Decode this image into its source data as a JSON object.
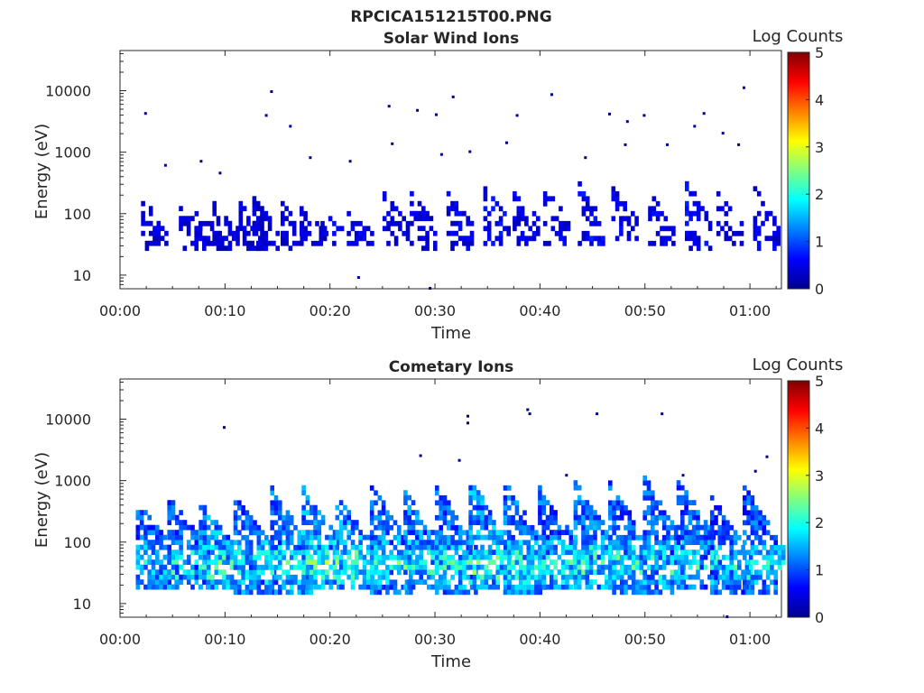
{
  "figure": {
    "title": "RPCICA151215T00.PNG"
  },
  "chart_data": [
    {
      "type": "heatmap",
      "title": "Solar Wind Ions",
      "xlabel": "Time",
      "ylabel": "Energy (eV)",
      "x_ticks": [
        "00:00",
        "00:10",
        "00:20",
        "00:30",
        "00:40",
        "00:50",
        "01:00"
      ],
      "x_range_minutes": [
        0,
        63
      ],
      "y_ticks": [
        "10",
        "100",
        "1000",
        "10000"
      ],
      "y_scale": "log",
      "y_range": [
        6,
        45000
      ],
      "colorbar": {
        "label": "Log Counts",
        "range": [
          0,
          5
        ],
        "ticks": [
          "0",
          "1",
          "2",
          "3",
          "4",
          "5"
        ]
      },
      "bursts": [
        {
          "t": 3.2,
          "e_lo": 25,
          "e_hi": 170,
          "amp": 0.6
        },
        {
          "t": 6.8,
          "e_lo": 25,
          "e_hi": 120,
          "amp": 0.6
        },
        {
          "t": 8.3,
          "e_lo": 30,
          "e_hi": 100,
          "amp": 0.6
        },
        {
          "t": 10.0,
          "e_lo": 25,
          "e_hi": 140,
          "amp": 0.6
        },
        {
          "t": 12.5,
          "e_lo": 25,
          "e_hi": 150,
          "amp": 0.6
        },
        {
          "t": 13.8,
          "e_lo": 25,
          "e_hi": 180,
          "amp": 0.6
        },
        {
          "t": 16.5,
          "e_lo": 25,
          "e_hi": 150,
          "amp": 0.6
        },
        {
          "t": 18.3,
          "e_lo": 30,
          "e_hi": 120,
          "amp": 0.6
        },
        {
          "t": 20.3,
          "e_lo": 30,
          "e_hi": 140,
          "amp": 0.7
        },
        {
          "t": 22.8,
          "e_lo": 30,
          "e_hi": 100,
          "amp": 0.7
        },
        {
          "t": 26.2,
          "e_lo": 30,
          "e_hi": 220,
          "amp": 0.6
        },
        {
          "t": 28.8,
          "e_lo": 25,
          "e_hi": 200,
          "amp": 0.6
        },
        {
          "t": 32.3,
          "e_lo": 25,
          "e_hi": 240,
          "amp": 0.7
        },
        {
          "t": 35.8,
          "e_lo": 30,
          "e_hi": 350,
          "amp": 0.8
        },
        {
          "t": 38.6,
          "e_lo": 30,
          "e_hi": 260,
          "amp": 0.7
        },
        {
          "t": 41.5,
          "e_lo": 30,
          "e_hi": 240,
          "amp": 0.7
        },
        {
          "t": 44.8,
          "e_lo": 30,
          "e_hi": 300,
          "amp": 0.8
        },
        {
          "t": 48.0,
          "e_lo": 30,
          "e_hi": 280,
          "amp": 0.7
        },
        {
          "t": 51.5,
          "e_lo": 30,
          "e_hi": 220,
          "amp": 0.7
        },
        {
          "t": 55.0,
          "e_lo": 25,
          "e_hi": 320,
          "amp": 0.8
        },
        {
          "t": 58.0,
          "e_lo": 30,
          "e_hi": 200,
          "amp": 0.6
        },
        {
          "t": 61.5,
          "e_lo": 25,
          "e_hi": 260,
          "amp": 0.7
        }
      ],
      "outliers": [
        {
          "t": 2.3,
          "e": 4200
        },
        {
          "t": 4.2,
          "e": 600
        },
        {
          "t": 7.6,
          "e": 700
        },
        {
          "t": 9.4,
          "e": 450
        },
        {
          "t": 14.3,
          "e": 9500
        },
        {
          "t": 13.8,
          "e": 3900
        },
        {
          "t": 16.1,
          "e": 2600
        },
        {
          "t": 18.0,
          "e": 800
        },
        {
          "t": 21.8,
          "e": 700
        },
        {
          "t": 25.5,
          "e": 5500
        },
        {
          "t": 25.8,
          "e": 1350
        },
        {
          "t": 28.2,
          "e": 4700
        },
        {
          "t": 30.0,
          "e": 4000
        },
        {
          "t": 31.6,
          "e": 7800
        },
        {
          "t": 30.5,
          "e": 900
        },
        {
          "t": 33.2,
          "e": 1000
        },
        {
          "t": 37.7,
          "e": 3900
        },
        {
          "t": 41.0,
          "e": 8500
        },
        {
          "t": 46.5,
          "e": 4100
        },
        {
          "t": 48.2,
          "e": 3100
        },
        {
          "t": 49.8,
          "e": 3900
        },
        {
          "t": 54.6,
          "e": 2600
        },
        {
          "t": 55.5,
          "e": 4200
        },
        {
          "t": 57.3,
          "e": 2000
        },
        {
          "t": 59.3,
          "e": 11000
        },
        {
          "t": 58.8,
          "e": 1300
        },
        {
          "t": 52.0,
          "e": 1300
        },
        {
          "t": 48.0,
          "e": 1300
        },
        {
          "t": 44.2,
          "e": 800
        },
        {
          "t": 36.7,
          "e": 1400
        },
        {
          "t": 22.6,
          "e": 9
        },
        {
          "t": 29.4,
          "e": 6
        }
      ]
    },
    {
      "type": "heatmap",
      "title": "Cometary Ions",
      "xlabel": "Time",
      "ylabel": "Energy (eV)",
      "x_ticks": [
        "00:00",
        "00:10",
        "00:20",
        "00:30",
        "00:40",
        "00:50",
        "01:00"
      ],
      "x_range_minutes": [
        0,
        63
      ],
      "y_ticks": [
        "10",
        "100",
        "1000",
        "10000"
      ],
      "y_scale": "log",
      "y_range": [
        6,
        45000
      ],
      "colorbar": {
        "label": "Log Counts",
        "range": [
          0,
          5
        ],
        "ticks": [
          "0",
          "1",
          "2",
          "3",
          "4",
          "5"
        ]
      },
      "bursts": [
        {
          "t": 3.5,
          "e_lo": 17,
          "e_hi": 450,
          "amp": 1.4
        },
        {
          "t": 6.5,
          "e_lo": 17,
          "e_hi": 500,
          "amp": 1.4
        },
        {
          "t": 9.5,
          "e_lo": 17,
          "e_hi": 400,
          "amp": 1.7
        },
        {
          "t": 12.8,
          "e_lo": 14,
          "e_hi": 600,
          "amp": 1.5
        },
        {
          "t": 16.3,
          "e_lo": 14,
          "e_hi": 700,
          "amp": 1.6
        },
        {
          "t": 19.3,
          "e_lo": 17,
          "e_hi": 700,
          "amp": 1.8
        },
        {
          "t": 22.5,
          "e_lo": 17,
          "e_hi": 500,
          "amp": 1.7
        },
        {
          "t": 25.8,
          "e_lo": 14,
          "e_hi": 800,
          "amp": 1.5
        },
        {
          "t": 29.0,
          "e_lo": 17,
          "e_hi": 600,
          "amp": 1.6
        },
        {
          "t": 32.0,
          "e_lo": 14,
          "e_hi": 800,
          "amp": 1.5
        },
        {
          "t": 35.2,
          "e_lo": 17,
          "e_hi": 1000,
          "amp": 1.8
        },
        {
          "t": 38.5,
          "e_lo": 14,
          "e_hi": 900,
          "amp": 1.6
        },
        {
          "t": 41.8,
          "e_lo": 17,
          "e_hi": 700,
          "amp": 1.5
        },
        {
          "t": 45.2,
          "e_lo": 17,
          "e_hi": 900,
          "amp": 1.6
        },
        {
          "t": 48.5,
          "e_lo": 14,
          "e_hi": 900,
          "amp": 1.5
        },
        {
          "t": 51.8,
          "e_lo": 14,
          "e_hi": 1100,
          "amp": 1.5
        },
        {
          "t": 55.0,
          "e_lo": 17,
          "e_hi": 1000,
          "amp": 1.5
        },
        {
          "t": 58.2,
          "e_lo": 14,
          "e_hi": 500,
          "amp": 1.3
        },
        {
          "t": 61.3,
          "e_lo": 14,
          "e_hi": 800,
          "amp": 1.4
        }
      ],
      "outliers": [
        {
          "t": 9.8,
          "e": 7200
        },
        {
          "t": 28.5,
          "e": 2500
        },
        {
          "t": 32.2,
          "e": 2100
        },
        {
          "t": 33.0,
          "e": 11000
        },
        {
          "t": 33.0,
          "e": 8500
        },
        {
          "t": 38.7,
          "e": 14000
        },
        {
          "t": 38.9,
          "e": 12000
        },
        {
          "t": 45.3,
          "e": 12000
        },
        {
          "t": 51.5,
          "e": 12000
        },
        {
          "t": 61.5,
          "e": 2400
        },
        {
          "t": 53.5,
          "e": 1200
        },
        {
          "t": 42.4,
          "e": 1200
        },
        {
          "t": 57.7,
          "e": 6
        },
        {
          "t": 60.4,
          "e": 1400
        }
      ]
    }
  ]
}
